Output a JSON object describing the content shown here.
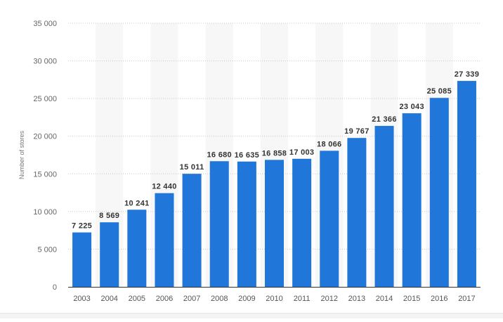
{
  "chart_data": {
    "type": "bar",
    "title": "",
    "xlabel": "",
    "ylabel": "Number of stores",
    "categories": [
      "2003",
      "2004",
      "2005",
      "2006",
      "2007",
      "2008",
      "2009",
      "2010",
      "2011",
      "2012",
      "2013",
      "2014",
      "2015",
      "2016",
      "2017"
    ],
    "values": [
      7225,
      8569,
      10241,
      12440,
      15011,
      16680,
      16635,
      16858,
      17003,
      18066,
      19767,
      21366,
      23043,
      25085,
      27339
    ],
    "value_labels": [
      "7 225",
      "8 569",
      "10 241",
      "12 440",
      "15 011",
      "16 680",
      "16 635",
      "16 858",
      "17 003",
      "18 066",
      "19 767",
      "21 366",
      "23 043",
      "25 085",
      "27 339"
    ],
    "ylim": [
      0,
      35000
    ],
    "yticks": [
      0,
      5000,
      10000,
      15000,
      20000,
      25000,
      30000,
      35000
    ],
    "ytick_labels": [
      "0",
      "5 000",
      "10 000",
      "15 000",
      "20 000",
      "25 000",
      "30 000",
      "35 000"
    ],
    "grid": true,
    "legend": "none",
    "colors": {
      "bar": "#2176d9",
      "grid": "#c8c8c8",
      "band": "#f7f7f7",
      "axis": "#333333"
    }
  }
}
